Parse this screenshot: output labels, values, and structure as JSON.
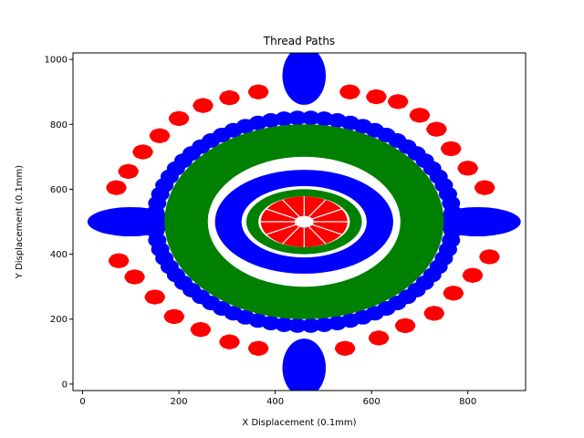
{
  "chart_data": {
    "type": "scatter",
    "title": "Thread Paths",
    "xlabel": "X Displacement (0.1mm)",
    "ylabel": "Y Displacement (0.1mm)",
    "xlim": [
      -20,
      920
    ],
    "ylim": [
      -20,
      1020
    ],
    "xticks": [
      0,
      200,
      400,
      600,
      800
    ],
    "yticks": [
      0,
      200,
      400,
      600,
      800,
      1000
    ],
    "grid": false,
    "legend": "none",
    "colors": {
      "red": "#ff0000",
      "blue": "#0000ff",
      "green": "#008000"
    },
    "center": [
      460,
      500
    ],
    "series": [
      {
        "color": "red",
        "shape": "blob-ring",
        "points": [
          [
            75,
            380
          ],
          [
            108,
            330
          ],
          [
            150,
            268
          ],
          [
            190,
            208
          ],
          [
            245,
            168
          ],
          [
            305,
            130
          ],
          [
            365,
            110
          ],
          [
            545,
            110
          ],
          [
            615,
            142
          ],
          [
            670,
            180
          ],
          [
            730,
            218
          ],
          [
            770,
            280
          ],
          [
            810,
            335
          ],
          [
            845,
            392
          ],
          [
            835,
            605
          ],
          [
            800,
            665
          ],
          [
            765,
            725
          ],
          [
            735,
            785
          ],
          [
            700,
            828
          ],
          [
            655,
            870
          ],
          [
            610,
            885
          ],
          [
            555,
            900
          ],
          [
            365,
            900
          ],
          [
            305,
            882
          ],
          [
            250,
            858
          ],
          [
            200,
            818
          ],
          [
            160,
            765
          ],
          [
            125,
            715
          ],
          [
            95,
            655
          ],
          [
            70,
            605
          ]
        ]
      },
      {
        "color": "blue",
        "shape": "petals",
        "petals": [
          {
            "center": [
              460,
              950
            ],
            "rx": 45,
            "ry": 90
          },
          {
            "center": [
              460,
              50
            ],
            "rx": 45,
            "ry": 90
          },
          {
            "center": [
              100,
              500
            ],
            "rx": 90,
            "ry": 45
          },
          {
            "center": [
              820,
              500
            ],
            "rx": 90,
            "ry": 45
          }
        ],
        "ring_dots": {
          "rx": 310,
          "ry": 320,
          "count": 70
        }
      },
      {
        "color": "green",
        "shape": "annulus",
        "outer": {
          "rx": 290,
          "ry": 300
        },
        "inner": {
          "rx": 200,
          "ry": 200
        }
      },
      {
        "color": "blue",
        "shape": "inner-ring",
        "outer": {
          "rx": 185,
          "ry": 160
        },
        "inner": {
          "rx": 130,
          "ry": 110
        }
      },
      {
        "color": "green",
        "shape": "inner-annulus",
        "outer": {
          "rx": 120,
          "ry": 100
        },
        "inner": {
          "rx": 95,
          "ry": 78
        }
      },
      {
        "color": "red",
        "shape": "rosette",
        "outer": {
          "rx": 90,
          "ry": 78
        },
        "inner": {
          "rx": 20,
          "ry": 18
        },
        "spokes": 12
      }
    ]
  }
}
